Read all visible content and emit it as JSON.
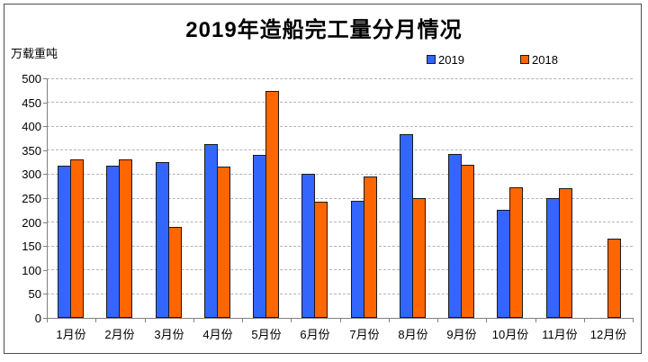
{
  "chart_data": {
    "type": "bar",
    "title": "2019年造船完工量分月情况",
    "ylabel": "万载重吨",
    "xlabel": "",
    "categories": [
      "1月份",
      "2月份",
      "3月份",
      "4月份",
      "5月份",
      "6月份",
      "7月份",
      "8月份",
      "9月份",
      "10月份",
      "11月份",
      "12月份"
    ],
    "series": [
      {
        "name": "2019",
        "color": "#3366ff",
        "values": [
          317,
          318,
          325,
          362,
          340,
          300,
          245,
          383,
          342,
          225,
          250,
          null
        ]
      },
      {
        "name": "2018",
        "color": "#ff6600",
        "values": [
          330,
          331,
          190,
          316,
          473,
          242,
          295,
          250,
          320,
          272,
          270,
          165
        ]
      }
    ],
    "ylim": [
      0,
      500
    ],
    "y_step": 50,
    "grid": "horizontal-dashed",
    "legend_position": "top-right",
    "colors": {
      "bar_border": "#1a1a1a",
      "gridline": "#b3b3b3",
      "axis": "#808080",
      "frame_border": "#4d4d4d",
      "text": "#000000",
      "background": "#ffffff"
    }
  }
}
